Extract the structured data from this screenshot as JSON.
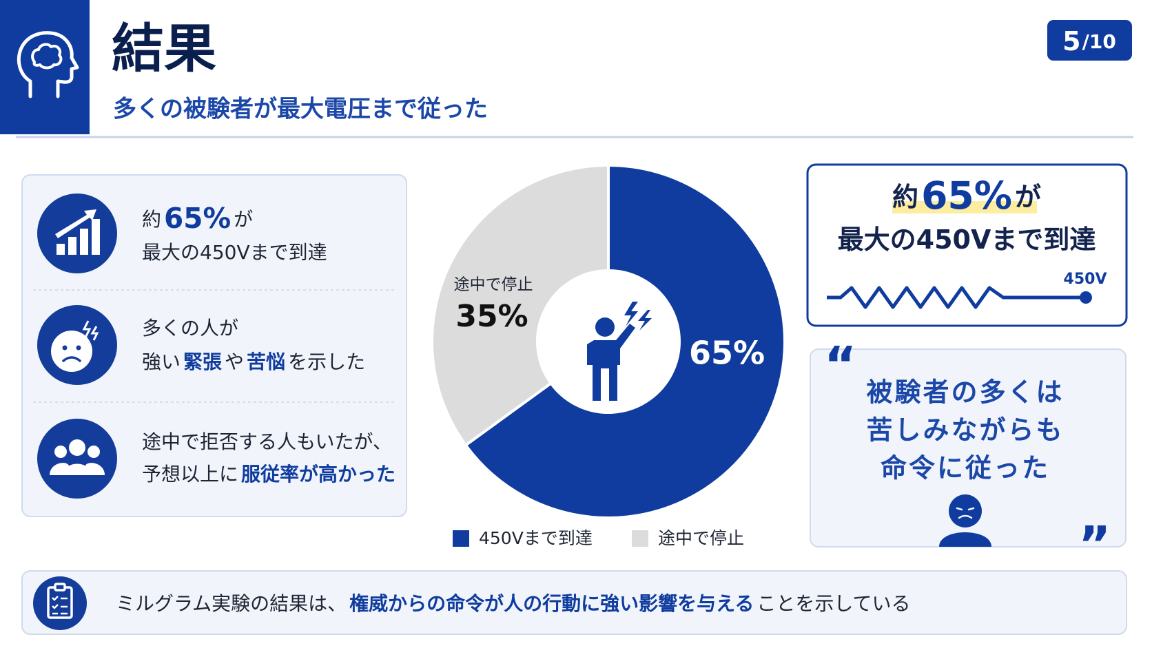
{
  "header": {
    "title": "結果",
    "subtitle": "多くの被験者が最大電圧まで従った"
  },
  "page": {
    "current": "5",
    "total": "/10"
  },
  "points": [
    {
      "lines": [
        [
          "約",
          {
            "text": "65%",
            "emphasis": "large"
          },
          "が"
        ],
        [
          "最大の450Vまで到達"
        ]
      ]
    },
    {
      "lines": [
        [
          "多くの人が"
        ],
        [
          "強い",
          {
            "text": "緊張",
            "emphasis": "color"
          },
          "や",
          {
            "text": "苦悩",
            "emphasis": "color"
          },
          "を示した"
        ]
      ]
    },
    {
      "lines": [
        [
          "途中で拒否する人もいたが、"
        ],
        [
          "予想以上に",
          {
            "text": "服従率が高かった",
            "emphasis": "color"
          }
        ]
      ]
    }
  ],
  "chart_data": {
    "type": "pie",
    "donut": true,
    "categories": [
      "450Vまで到達",
      "途中で停止"
    ],
    "values": [
      65,
      35
    ],
    "value_labels": [
      "65%",
      "35%"
    ],
    "colors": [
      "#0f3c9e",
      "#dcdcdc"
    ]
  },
  "highlight": {
    "lines": [
      [
        "約",
        {
          "text": "65%",
          "emphasis": "large"
        },
        "が"
      ],
      [
        "最大の450Vまで到達"
      ]
    ],
    "marker": "450V"
  },
  "quote": {
    "open": "“",
    "close": "”",
    "lines": [
      "被験者の多くは",
      "苦しみながらも",
      "命令に従った"
    ]
  },
  "conclusion": [
    "ミルグラム実験の結果は、",
    {
      "text": "権威からの命令が人の行動に強い影響を与える",
      "emphasis": "color"
    },
    "ことを示している"
  ]
}
